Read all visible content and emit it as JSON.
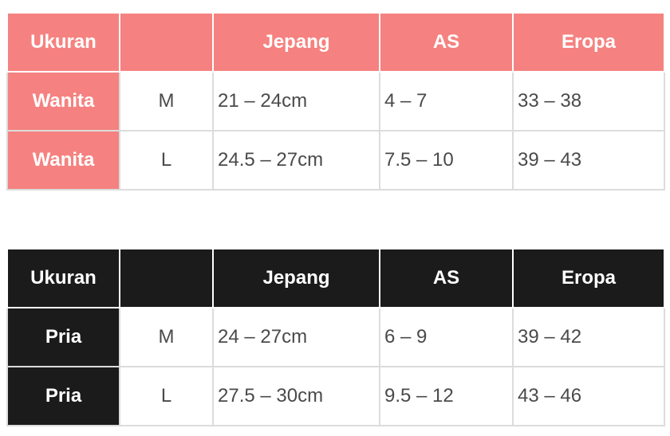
{
  "colors": {
    "women_accent": "#f58280",
    "men_accent": "#1b1b1b"
  },
  "tables": [
    {
      "headers": [
        "Ukuran",
        "",
        "Jepang",
        "AS",
        "Eropa"
      ],
      "rows": [
        [
          "Wanita",
          "M",
          "21 – 24cm",
          "4 – 7",
          "33 – 38"
        ],
        [
          "Wanita",
          "L",
          "24.5 – 27cm",
          "7.5 – 10",
          "39 – 43"
        ]
      ]
    },
    {
      "headers": [
        "Ukuran",
        "",
        "Jepang",
        "AS",
        "Eropa"
      ],
      "rows": [
        [
          "Pria",
          "M",
          "24 – 27cm",
          "6 – 9",
          "39 – 42"
        ],
        [
          "Pria",
          "L",
          "27.5 – 30cm",
          "9.5 – 12",
          "43 – 46"
        ]
      ]
    }
  ]
}
